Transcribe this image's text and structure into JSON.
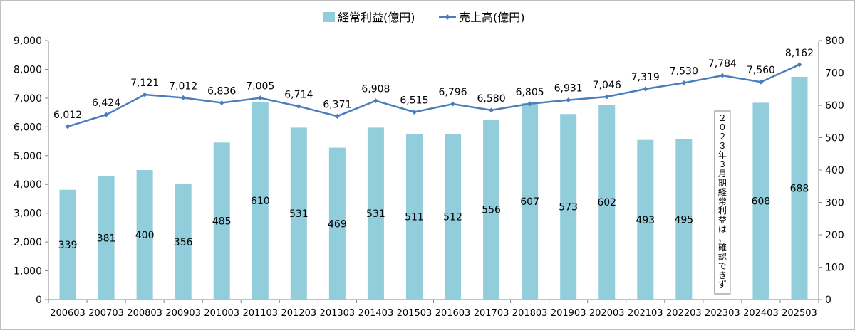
{
  "chart_data": {
    "type": "bar",
    "categories": [
      "200603",
      "200703",
      "200803",
      "200903",
      "201003",
      "201103",
      "201203",
      "201303",
      "201403",
      "201503",
      "201603",
      "201703",
      "201803",
      "201903",
      "202003",
      "202103",
      "202203",
      "202303",
      "202403",
      "202503"
    ],
    "series": [
      {
        "name": "経常利益(億円)",
        "type": "bar",
        "axis": "right",
        "color": "#92cddc",
        "values": [
          339,
          381,
          400,
          356,
          485,
          610,
          531,
          469,
          531,
          511,
          512,
          556,
          607,
          573,
          602,
          493,
          495,
          null,
          608,
          688
        ],
        "labels": [
          "339",
          "381",
          "400",
          "356",
          "485",
          "610",
          "531",
          "469",
          "531",
          "511",
          "512",
          "556",
          "607",
          "573",
          "602",
          "493",
          "495",
          "",
          "608",
          "688"
        ]
      },
      {
        "name": "売上高(億円)",
        "type": "line",
        "axis": "left",
        "color": "#4a7ebb",
        "values": [
          6012,
          6424,
          7121,
          7012,
          6836,
          7005,
          6714,
          6371,
          6908,
          6515,
          6796,
          6580,
          6805,
          6931,
          7046,
          7319,
          7530,
          7784,
          7560,
          8162
        ],
        "labels": [
          "6,012",
          "6,424",
          "7,121",
          "7,012",
          "6,836",
          "7,005",
          "6,714",
          "6,371",
          "6,908",
          "6,515",
          "6,796",
          "6,580",
          "6,805",
          "6,931",
          "7,046",
          "7,319",
          "7,530",
          "7,784",
          "7,560",
          "8,162"
        ]
      }
    ],
    "y_left": {
      "range": [
        0,
        9000
      ],
      "ticks": [
        "0",
        "1,000",
        "2,000",
        "3,000",
        "4,000",
        "5,000",
        "6,000",
        "7,000",
        "8,000",
        "9,000"
      ]
    },
    "y_right": {
      "range": [
        0,
        800
      ],
      "ticks": [
        "0",
        "100",
        "200",
        "300",
        "400",
        "500",
        "600",
        "700",
        "800"
      ]
    },
    "legend_position": "top-center",
    "grid": false,
    "annotation": {
      "category": "202303",
      "text": "２０２３年３月期経常利益は、確認できず"
    }
  }
}
